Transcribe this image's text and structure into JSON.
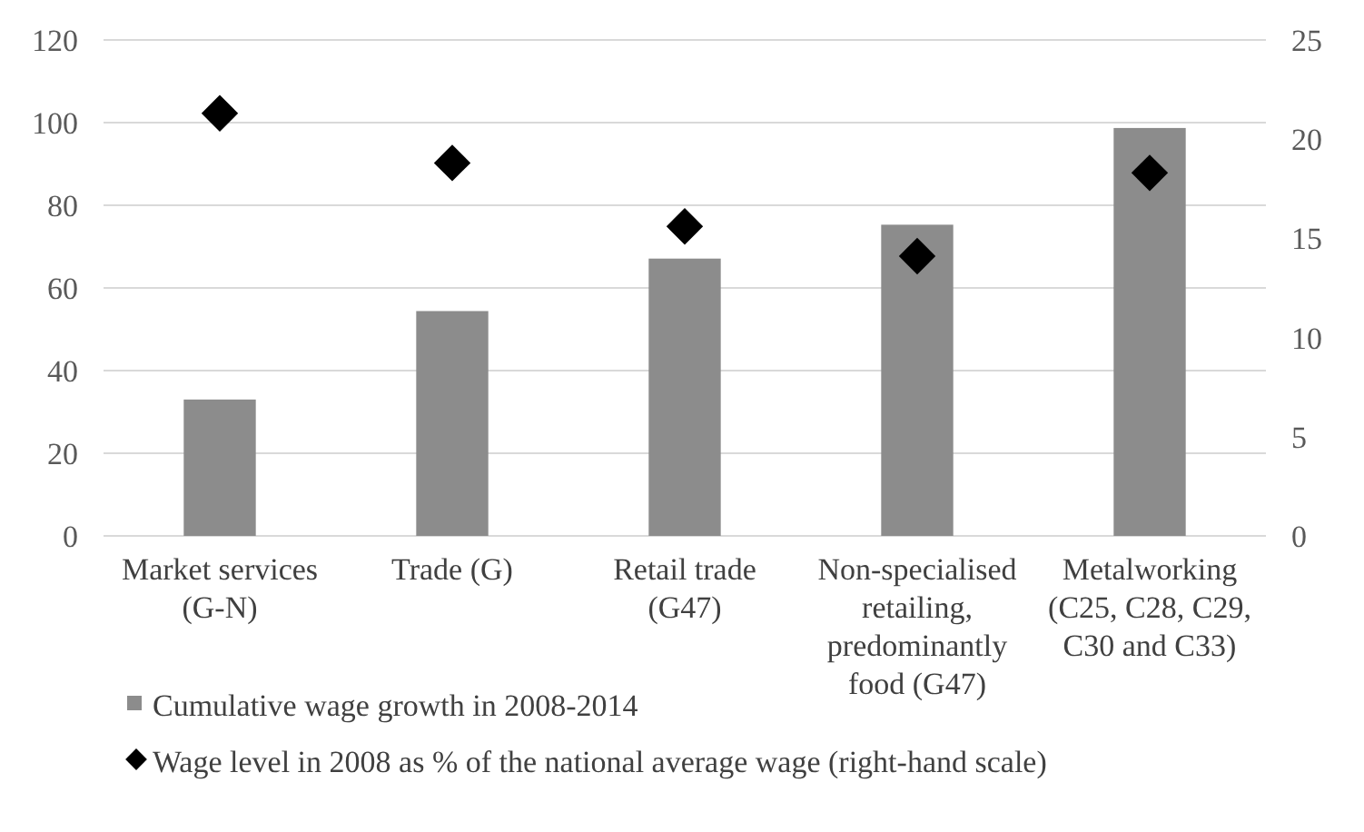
{
  "chart_data": {
    "type": "bar",
    "categories": [
      "Market services (G-N)",
      "Trade (G)",
      "Retail trade (G47)",
      "Non-specialised retailing, predominantly food (G47)",
      "Metalworking (C25, C28, C29, C30 and C33)"
    ],
    "series": [
      {
        "name": "Cumulative wage growth in 2008-2014",
        "color": "#8c8c8c",
        "values": [
          33,
          54.4,
          67.1,
          75.3,
          98.7
        ]
      },
      {
        "name": "Wage level in 2008 as % of the national average wage (right-hand scale)",
        "type": "scatter",
        "axis": "y2",
        "color": "#000000",
        "marker": "diamond",
        "values": [
          21.3,
          18.8,
          15.6,
          14.1,
          18.3
        ]
      }
    ],
    "ylim": [
      0,
      120
    ],
    "yticks": [
      0,
      20,
      40,
      60,
      80,
      100,
      120
    ],
    "y2lim": [
      0,
      25
    ],
    "y2ticks": [
      0,
      5,
      10,
      15,
      20,
      25
    ],
    "grid": "y",
    "legend": "bottom"
  }
}
